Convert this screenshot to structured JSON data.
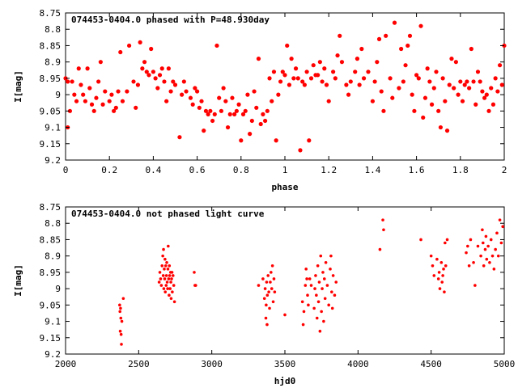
{
  "chart_data": [
    {
      "type": "scatter",
      "title": "074453-0404.0 phased with P=48.930day",
      "xlabel": "phase",
      "ylabel": "I[mag]",
      "xlim": [
        0,
        2
      ],
      "ylim": [
        9.2,
        8.75
      ],
      "y_reversed": true,
      "xticks": [
        "0",
        "0.2",
        "0.4",
        "0.6",
        "0.8",
        "1",
        "1.2",
        "1.4",
        "1.6",
        "1.8",
        "2"
      ],
      "yticks": [
        "8.75",
        "8.8",
        "8.85",
        "8.9",
        "8.95",
        "9",
        "9.05",
        "9.1",
        "9.15",
        "9.2"
      ],
      "marker_color": "#ff0000",
      "points": [
        [
          0.0,
          8.95
        ],
        [
          0.01,
          8.96
        ],
        [
          0.01,
          9.1
        ],
        [
          0.02,
          9.05
        ],
        [
          0.03,
          8.96
        ],
        [
          0.04,
          9.0
        ],
        [
          0.05,
          9.02
        ],
        [
          0.06,
          8.92
        ],
        [
          0.07,
          8.97
        ],
        [
          0.08,
          9.0
        ],
        [
          0.09,
          9.02
        ],
        [
          0.1,
          8.92
        ],
        [
          0.11,
          8.98
        ],
        [
          0.12,
          9.03
        ],
        [
          0.13,
          9.05
        ],
        [
          0.14,
          9.01
        ],
        [
          0.15,
          8.96
        ],
        [
          0.16,
          8.9
        ],
        [
          0.17,
          9.03
        ],
        [
          0.18,
          8.99
        ],
        [
          0.2,
          9.02
        ],
        [
          0.21,
          9.0
        ],
        [
          0.22,
          9.05
        ],
        [
          0.23,
          9.04
        ],
        [
          0.24,
          8.99
        ],
        [
          0.25,
          8.87
        ],
        [
          0.26,
          9.02
        ],
        [
          0.28,
          8.99
        ],
        [
          0.29,
          8.85
        ],
        [
          0.31,
          8.96
        ],
        [
          0.32,
          9.04
        ],
        [
          0.33,
          8.97
        ],
        [
          0.34,
          8.84
        ],
        [
          0.35,
          8.92
        ],
        [
          0.36,
          8.9
        ],
        [
          0.37,
          8.93
        ],
        [
          0.38,
          8.94
        ],
        [
          0.39,
          8.86
        ],
        [
          0.4,
          8.93
        ],
        [
          0.41,
          8.95
        ],
        [
          0.42,
          8.98
        ],
        [
          0.43,
          8.94
        ],
        [
          0.44,
          8.92
        ],
        [
          0.45,
          8.96
        ],
        [
          0.46,
          9.02
        ],
        [
          0.47,
          8.92
        ],
        [
          0.48,
          8.99
        ],
        [
          0.49,
          8.96
        ],
        [
          0.5,
          8.97
        ],
        [
          0.52,
          9.13
        ],
        [
          0.53,
          9.0
        ],
        [
          0.54,
          8.96
        ],
        [
          0.55,
          8.99
        ],
        [
          0.57,
          9.01
        ],
        [
          0.58,
          9.03
        ],
        [
          0.59,
          8.98
        ],
        [
          0.6,
          8.99
        ],
        [
          0.61,
          9.04
        ],
        [
          0.62,
          9.02
        ],
        [
          0.63,
          9.11
        ],
        [
          0.64,
          9.05
        ],
        [
          0.65,
          9.06
        ],
        [
          0.66,
          9.05
        ],
        [
          0.67,
          9.08
        ],
        [
          0.68,
          9.06
        ],
        [
          0.69,
          8.85
        ],
        [
          0.7,
          9.01
        ],
        [
          0.71,
          9.05
        ],
        [
          0.72,
          8.98
        ],
        [
          0.73,
          9.02
        ],
        [
          0.74,
          9.1
        ],
        [
          0.75,
          9.06
        ],
        [
          0.76,
          9.01
        ],
        [
          0.77,
          9.06
        ],
        [
          0.78,
          9.05
        ],
        [
          0.79,
          9.03
        ],
        [
          0.8,
          9.14
        ],
        [
          0.81,
          9.06
        ],
        [
          0.82,
          9.05
        ],
        [
          0.83,
          9.0
        ],
        [
          0.84,
          9.12
        ],
        [
          0.85,
          9.08
        ],
        [
          0.86,
          8.99
        ],
        [
          0.87,
          9.04
        ],
        [
          0.88,
          8.89
        ],
        [
          0.89,
          9.09
        ],
        [
          0.9,
          9.06
        ],
        [
          0.91,
          9.08
        ],
        [
          0.92,
          9.05
        ],
        [
          0.93,
          8.95
        ],
        [
          0.94,
          9.02
        ],
        [
          0.95,
          8.93
        ],
        [
          0.96,
          9.14
        ],
        [
          0.97,
          9.0
        ],
        [
          0.98,
          8.96
        ],
        [
          0.99,
          8.93
        ],
        [
          1.0,
          8.94
        ],
        [
          1.01,
          8.85
        ],
        [
          1.02,
          8.97
        ],
        [
          1.03,
          8.89
        ],
        [
          1.04,
          8.95
        ],
        [
          1.05,
          8.92
        ],
        [
          1.06,
          8.95
        ],
        [
          1.07,
          9.17
        ],
        [
          1.08,
          8.96
        ],
        [
          1.09,
          8.97
        ],
        [
          1.1,
          8.93
        ],
        [
          1.11,
          9.14
        ],
        [
          1.12,
          8.95
        ],
        [
          1.13,
          8.91
        ],
        [
          1.14,
          8.94
        ],
        [
          1.15,
          8.94
        ],
        [
          1.16,
          8.9
        ],
        [
          1.17,
          8.96
        ],
        [
          1.18,
          8.92
        ],
        [
          1.19,
          8.97
        ],
        [
          1.2,
          9.02
        ],
        [
          1.22,
          8.93
        ],
        [
          1.23,
          8.95
        ],
        [
          1.24,
          8.88
        ],
        [
          1.25,
          8.82
        ],
        [
          1.26,
          8.9
        ],
        [
          1.28,
          8.97
        ],
        [
          1.29,
          9.0
        ],
        [
          1.3,
          8.96
        ],
        [
          1.32,
          8.93
        ],
        [
          1.33,
          8.89
        ],
        [
          1.34,
          8.97
        ],
        [
          1.35,
          8.86
        ],
        [
          1.36,
          8.95
        ],
        [
          1.38,
          8.93
        ],
        [
          1.4,
          9.02
        ],
        [
          1.41,
          8.96
        ],
        [
          1.42,
          8.9
        ],
        [
          1.43,
          8.83
        ],
        [
          1.44,
          8.99
        ],
        [
          1.45,
          9.05
        ],
        [
          1.46,
          8.82
        ],
        [
          1.48,
          8.95
        ],
        [
          1.49,
          9.01
        ],
        [
          1.5,
          8.78
        ],
        [
          1.52,
          8.98
        ],
        [
          1.53,
          8.86
        ],
        [
          1.54,
          8.96
        ],
        [
          1.55,
          8.91
        ],
        [
          1.56,
          8.85
        ],
        [
          1.57,
          8.82
        ],
        [
          1.58,
          9.0
        ],
        [
          1.59,
          9.05
        ],
        [
          1.6,
          8.94
        ],
        [
          1.61,
          8.95
        ],
        [
          1.62,
          8.79
        ],
        [
          1.63,
          9.07
        ],
        [
          1.64,
          9.01
        ],
        [
          1.65,
          8.92
        ],
        [
          1.66,
          8.96
        ],
        [
          1.67,
          9.03
        ],
        [
          1.68,
          8.98
        ],
        [
          1.69,
          8.93
        ],
        [
          1.7,
          9.05
        ],
        [
          1.71,
          9.1
        ],
        [
          1.72,
          8.95
        ],
        [
          1.73,
          9.02
        ],
        [
          1.74,
          9.11
        ],
        [
          1.75,
          8.97
        ],
        [
          1.76,
          8.89
        ],
        [
          1.77,
          8.98
        ],
        [
          1.78,
          8.9
        ],
        [
          1.79,
          9.0
        ],
        [
          1.8,
          8.96
        ],
        [
          1.81,
          9.02
        ],
        [
          1.82,
          8.97
        ],
        [
          1.83,
          8.96
        ],
        [
          1.84,
          8.98
        ],
        [
          1.85,
          8.86
        ],
        [
          1.86,
          8.96
        ],
        [
          1.87,
          9.03
        ],
        [
          1.88,
          8.93
        ],
        [
          1.89,
          8.96
        ],
        [
          1.9,
          8.99
        ],
        [
          1.91,
          9.01
        ],
        [
          1.92,
          9.0
        ],
        [
          1.93,
          9.05
        ],
        [
          1.94,
          8.98
        ],
        [
          1.95,
          9.03
        ],
        [
          1.96,
          8.95
        ],
        [
          1.97,
          8.99
        ],
        [
          1.98,
          8.91
        ],
        [
          1.99,
          8.97
        ],
        [
          2.0,
          8.85
        ]
      ]
    },
    {
      "type": "scatter",
      "title": "074453-0404.0 not phased light curve",
      "xlabel": "hjd0",
      "ylabel": "I[mag]",
      "xlim": [
        2000,
        5000
      ],
      "ylim": [
        9.2,
        8.75
      ],
      "y_reversed": true,
      "xticks": [
        "2000",
        "2500",
        "3000",
        "3500",
        "4000",
        "4500",
        "5000"
      ],
      "yticks": [
        "8.75",
        "8.8",
        "8.85",
        "8.9",
        "8.95",
        "9",
        "9.05",
        "9.1",
        "9.15",
        "9.2"
      ],
      "marker_color": "#ff0000",
      "points": [
        [
          2370,
          9.05
        ],
        [
          2372,
          9.07
        ],
        [
          2374,
          9.13
        ],
        [
          2376,
          9.06
        ],
        [
          2378,
          9.09
        ],
        [
          2380,
          9.14
        ],
        [
          2382,
          9.17
        ],
        [
          2385,
          9.1
        ],
        [
          2395,
          9.03
        ],
        [
          2640,
          8.98
        ],
        [
          2645,
          8.95
        ],
        [
          2650,
          8.97
        ],
        [
          2655,
          8.99
        ],
        [
          2660,
          8.93
        ],
        [
          2665,
          8.9
        ],
        [
          2668,
          8.96
        ],
        [
          2670,
          8.88
        ],
        [
          2672,
          9.0
        ],
        [
          2675,
          8.94
        ],
        [
          2678,
          8.97
        ],
        [
          2680,
          8.91
        ],
        [
          2682,
          9.01
        ],
        [
          2685,
          8.93
        ],
        [
          2688,
          8.99
        ],
        [
          2690,
          8.96
        ],
        [
          2692,
          8.92
        ],
        [
          2695,
          8.98
        ],
        [
          2698,
          9.0
        ],
        [
          2700,
          8.94
        ],
        [
          2702,
          8.87
        ],
        [
          2705,
          8.97
        ],
        [
          2708,
          9.02
        ],
        [
          2710,
          8.93
        ],
        [
          2712,
          8.96
        ],
        [
          2715,
          9.0
        ],
        [
          2718,
          8.95
        ],
        [
          2720,
          8.98
        ],
        [
          2722,
          9.03
        ],
        [
          2725,
          8.97
        ],
        [
          2728,
          8.95
        ],
        [
          2730,
          9.01
        ],
        [
          2735,
          8.96
        ],
        [
          2740,
          8.99
        ],
        [
          2745,
          9.04
        ],
        [
          2880,
          8.95
        ],
        [
          2885,
          8.99
        ],
        [
          2890,
          8.99
        ],
        [
          3320,
          8.99
        ],
        [
          3350,
          8.97
        ],
        [
          3360,
          9.03
        ],
        [
          3365,
          9.0
        ],
        [
          3370,
          9.09
        ],
        [
          3372,
          9.05
        ],
        [
          3375,
          8.98
        ],
        [
          3378,
          9.11
        ],
        [
          3380,
          9.02
        ],
        [
          3385,
          8.96
        ],
        [
          3390,
          9.01
        ],
        [
          3395,
          9.06
        ],
        [
          3400,
          8.98
        ],
        [
          3405,
          8.95
        ],
        [
          3410,
          9.0
        ],
        [
          3415,
          8.93
        ],
        [
          3420,
          9.04
        ],
        [
          3425,
          8.97
        ],
        [
          3430,
          9.01
        ],
        [
          3500,
          9.08
        ],
        [
          3620,
          9.04
        ],
        [
          3625,
          9.11
        ],
        [
          3630,
          9.07
        ],
        [
          3640,
          8.99
        ],
        [
          3645,
          8.94
        ],
        [
          3650,
          8.97
        ],
        [
          3655,
          9.02
        ],
        [
          3660,
          9.05
        ],
        [
          3670,
          8.97
        ],
        [
          3680,
          8.99
        ],
        [
          3700,
          9.06
        ],
        [
          3705,
          9.0
        ],
        [
          3710,
          8.96
        ],
        [
          3715,
          9.02
        ],
        [
          3720,
          9.09
        ],
        [
          3725,
          8.93
        ],
        [
          3730,
          9.04
        ],
        [
          3735,
          8.98
        ],
        [
          3740,
          9.13
        ],
        [
          3745,
          8.9
        ],
        [
          3750,
          9.07
        ],
        [
          3755,
          9.0
        ],
        [
          3760,
          8.95
        ],
        [
          3765,
          9.1
        ],
        [
          3770,
          8.97
        ],
        [
          3775,
          9.03
        ],
        [
          3780,
          8.92
        ],
        [
          3790,
          8.99
        ],
        [
          3800,
          9.05
        ],
        [
          3810,
          8.94
        ],
        [
          3815,
          8.9
        ],
        [
          3820,
          9.01
        ],
        [
          3825,
          9.06
        ],
        [
          3830,
          8.96
        ],
        [
          3840,
          9.02
        ],
        [
          3850,
          8.98
        ],
        [
          4150,
          8.88
        ],
        [
          4170,
          8.79
        ],
        [
          4175,
          8.82
        ],
        [
          4430,
          8.85
        ],
        [
          4500,
          8.9
        ],
        [
          4510,
          8.93
        ],
        [
          4520,
          8.96
        ],
        [
          4540,
          8.91
        ],
        [
          4550,
          8.97
        ],
        [
          4555,
          8.95
        ],
        [
          4560,
          9.0
        ],
        [
          4570,
          8.92
        ],
        [
          4575,
          8.98
        ],
        [
          4580,
          8.96
        ],
        [
          4585,
          8.94
        ],
        [
          4590,
          9.01
        ],
        [
          4595,
          8.86
        ],
        [
          4600,
          8.93
        ],
        [
          4610,
          8.85
        ],
        [
          4740,
          8.89
        ],
        [
          4750,
          8.87
        ],
        [
          4760,
          8.93
        ],
        [
          4770,
          8.85
        ],
        [
          4790,
          8.92
        ],
        [
          4800,
          8.99
        ],
        [
          4820,
          8.87
        ],
        [
          4840,
          8.9
        ],
        [
          4850,
          8.82
        ],
        [
          4855,
          8.86
        ],
        [
          4860,
          8.93
        ],
        [
          4870,
          8.88
        ],
        [
          4875,
          8.84
        ],
        [
          4880,
          8.91
        ],
        [
          4890,
          8.87
        ],
        [
          4900,
          8.92
        ],
        [
          4910,
          8.85
        ],
        [
          4920,
          8.9
        ],
        [
          4930,
          8.94
        ],
        [
          4940,
          8.88
        ],
        [
          4950,
          8.83
        ],
        [
          4960,
          8.9
        ],
        [
          4970,
          8.79
        ],
        [
          4980,
          8.86
        ],
        [
          4990,
          8.81
        ]
      ]
    }
  ]
}
